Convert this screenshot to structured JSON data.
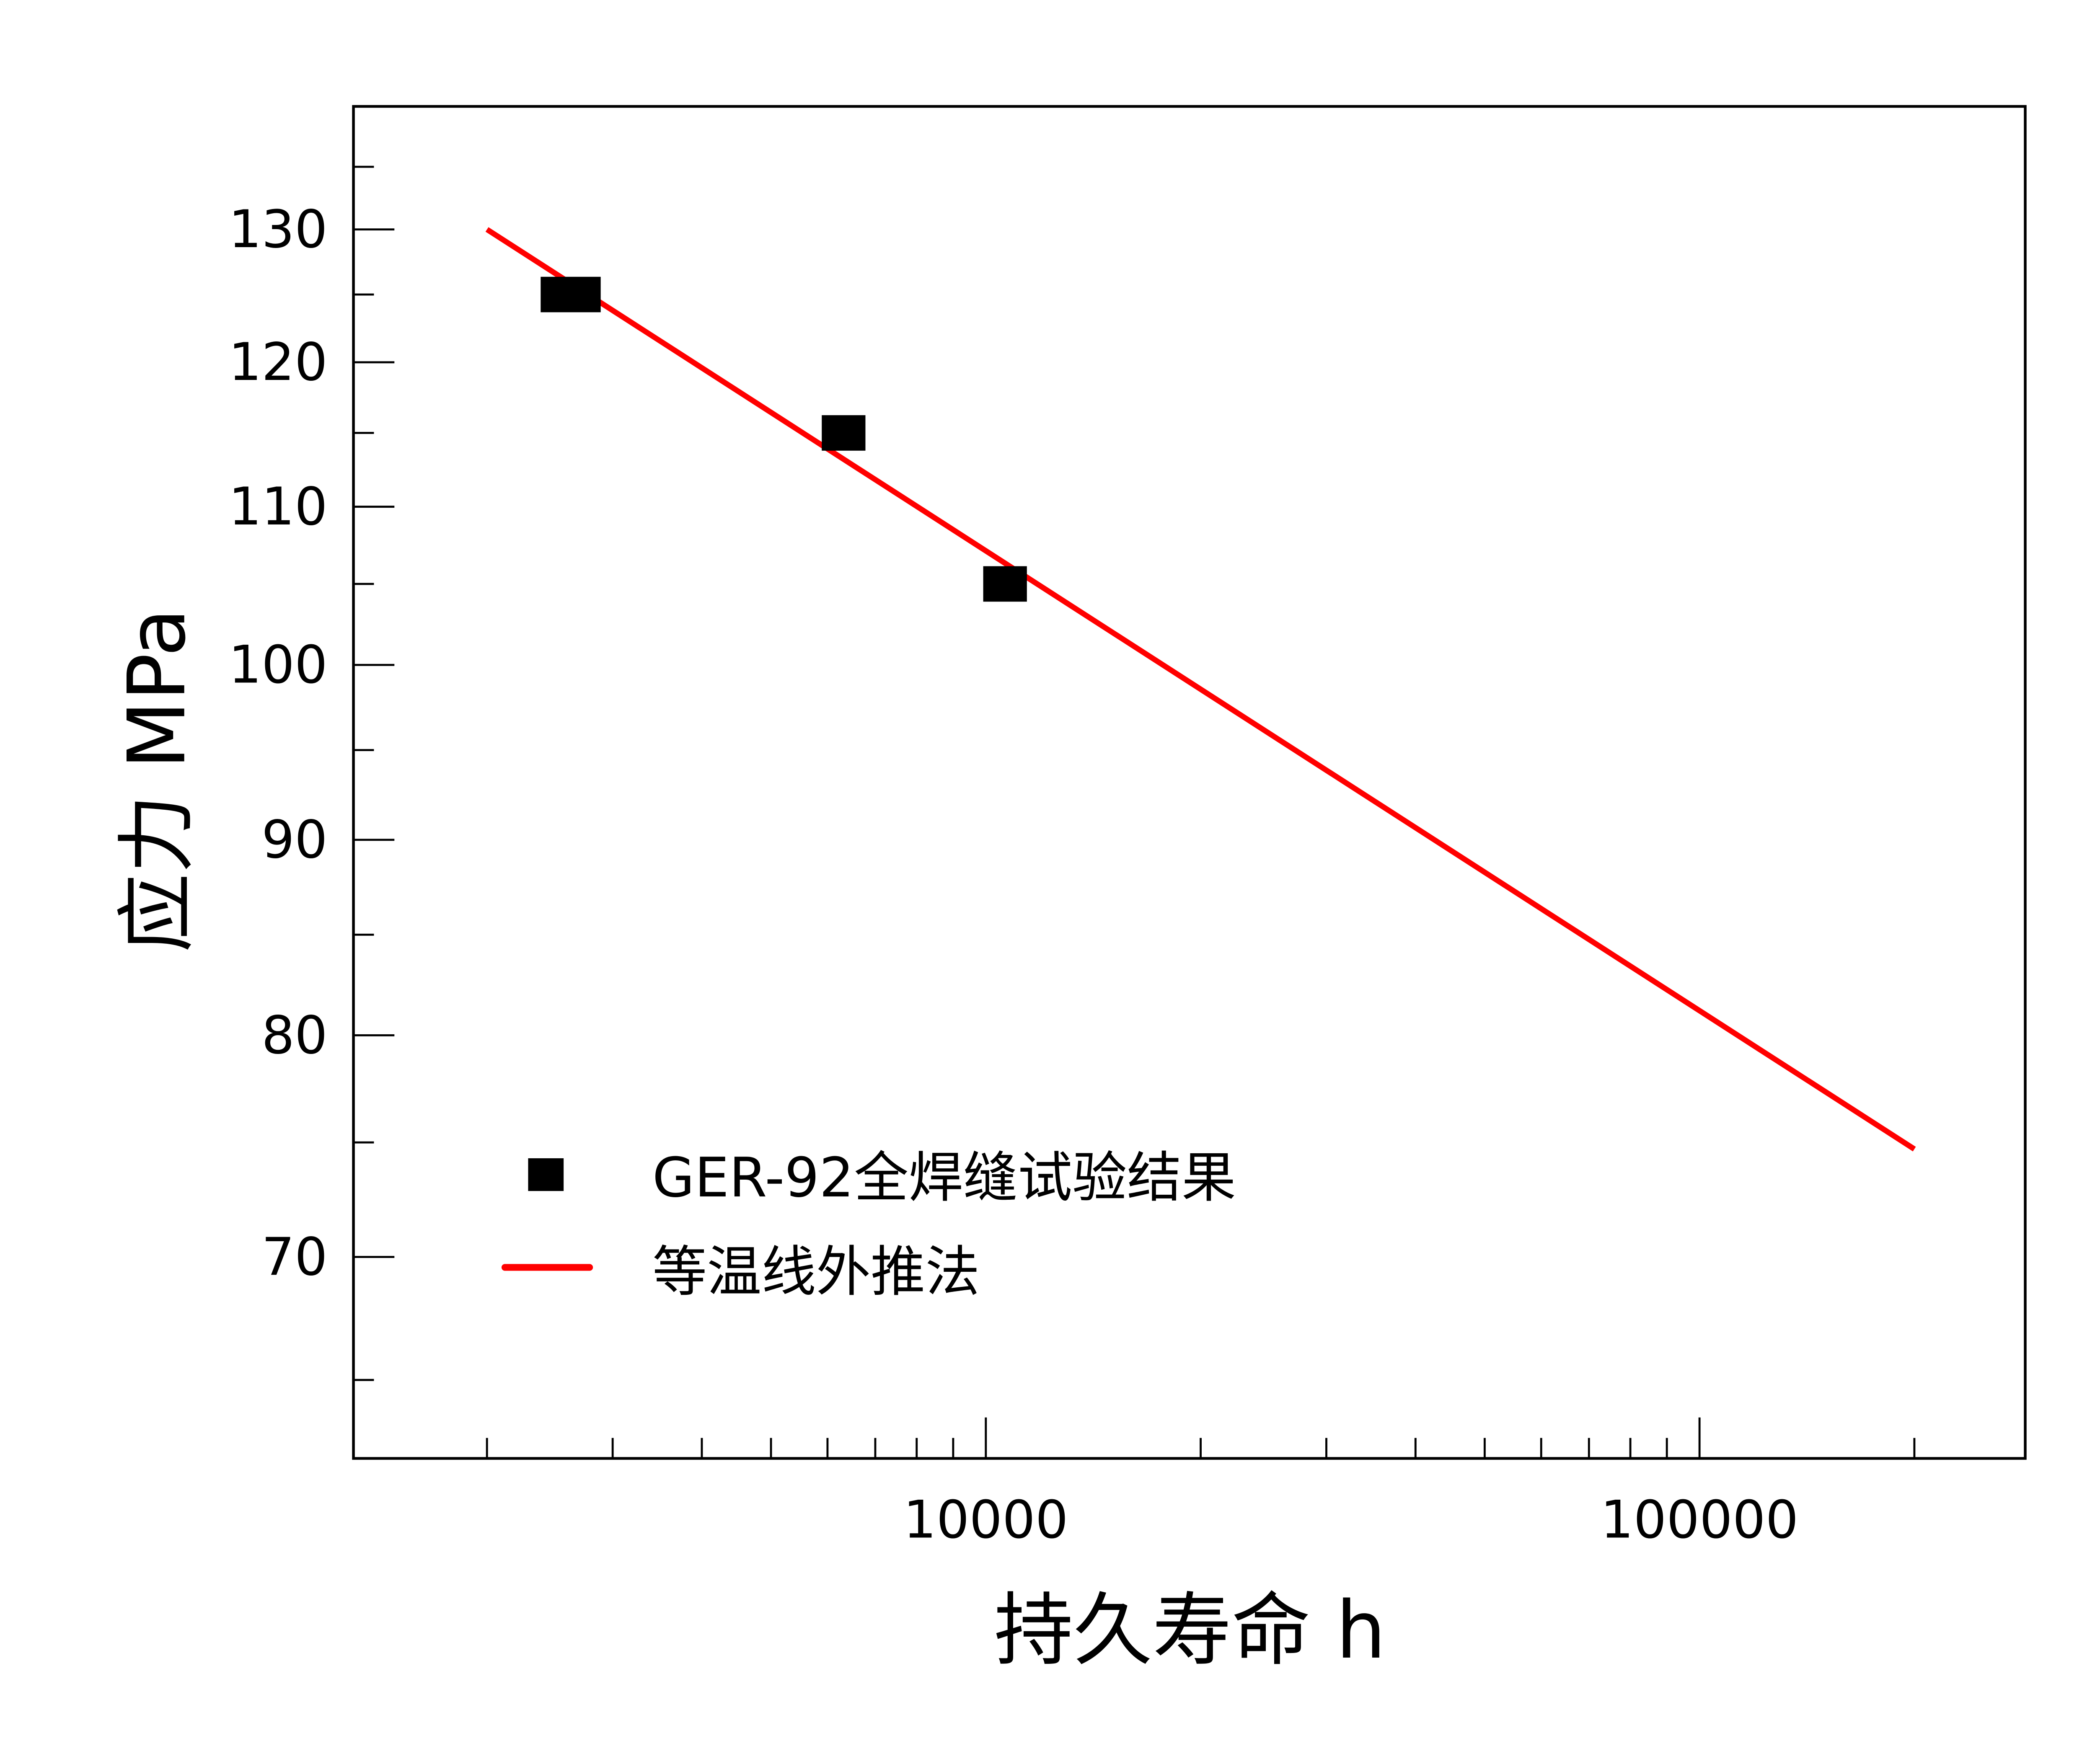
{
  "chart_data": {
    "type": "scatter",
    "title": "",
    "xlabel": "持久寿命 h",
    "ylabel": "应力 MPa",
    "xscale": "log",
    "yscale": "log",
    "xlim": [
      1300,
      286000
    ],
    "ylim": [
      62,
      140
    ],
    "grid": false,
    "legend_position": "lower left (inside)",
    "x_ticks": [
      {
        "value": 10000,
        "label": "10000"
      },
      {
        "value": 100000,
        "label": "100000"
      }
    ],
    "x_minor_ticks": [
      2000,
      3000,
      4000,
      5000,
      6000,
      7000,
      8000,
      9000,
      20000,
      30000,
      40000,
      50000,
      60000,
      70000,
      80000,
      90000,
      200000
    ],
    "y_ticks": [
      {
        "value": 130,
        "label": "130"
      },
      {
        "value": 120,
        "label": "120"
      },
      {
        "value": 110,
        "label": "110"
      },
      {
        "value": 100,
        "label": "100"
      },
      {
        "value": 90,
        "label": "90"
      },
      {
        "value": 80,
        "label": "80"
      },
      {
        "value": 70,
        "label": "70"
      }
    ],
    "y_minor_ticks": [
      135,
      125,
      115,
      105,
      95,
      85,
      75,
      65
    ],
    "series": [
      {
        "name": "GER-92全焊缝试验结果",
        "kind": "scatter",
        "marker": "square",
        "color": "#000000",
        "points": [
          {
            "x": 2620,
            "y": 125
          },
          {
            "x": 6320,
            "y": 115
          },
          {
            "x": 10640,
            "y": 105
          }
        ]
      },
      {
        "name": "等温线外推法",
        "kind": "line",
        "color": "#ff0000",
        "points": [
          {
            "x": 2000,
            "y": 130
          },
          {
            "x": 200000,
            "y": 74.7
          }
        ]
      }
    ]
  },
  "labels": {
    "xlabel": "持久寿命 h",
    "ylabel": "应力 MPa",
    "legend": [
      "GER-92全焊缝试验结果",
      "等温线外推法"
    ]
  }
}
